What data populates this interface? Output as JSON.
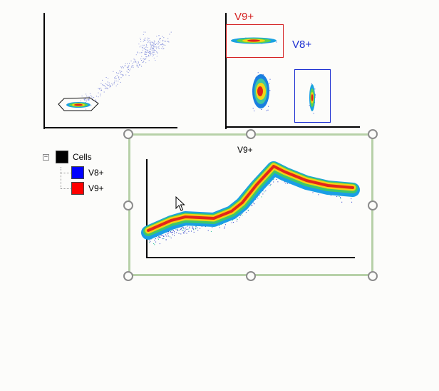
{
  "plots": {
    "top_left": {
      "name": "scatter-plot-cells"
    },
    "top_right": {
      "gates": [
        {
          "label": "V9+",
          "color": "#d42020"
        },
        {
          "label": "V8+",
          "color": "#1c2fd1"
        }
      ]
    },
    "kinetic": {
      "title": "V9+"
    }
  },
  "legend": {
    "items": [
      {
        "label": "Cells",
        "color": "#000000"
      },
      {
        "label": "V8+",
        "color": "#0000ff"
      },
      {
        "label": "V9+",
        "color": "#ff0000"
      }
    ],
    "expander_symbol": "−"
  },
  "cursor": "arrow-cursor-icon"
}
